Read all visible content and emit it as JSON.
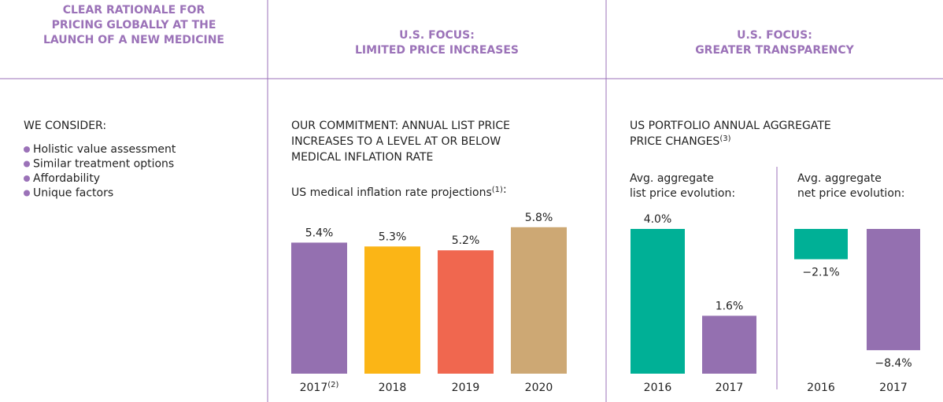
{
  "columns": [
    {
      "header": [
        "CLEAR RATIONALE FOR",
        "PRICING GLOBALLY AT THE",
        "LAUNCH OF A NEW MEDICINE"
      ],
      "heading": [
        "WE CONSIDER:"
      ],
      "bullets": [
        "Holistic value assessment",
        "Similar treatment options",
        "Affordability",
        "Unique factors"
      ]
    },
    {
      "header": [
        "U.S. FOCUS:",
        "LIMITED PRICE INCREASES"
      ],
      "heading": [
        "OUR COMMITMENT: ANNUAL LIST PRICE",
        "INCREASES TO A LEVEL AT OR BELOW",
        "MEDICAL INFLATION RATE"
      ]
    },
    {
      "header": [
        "U.S. FOCUS:",
        "GREATER TRANSPARENCY"
      ],
      "heading": [
        "US PORTFOLIO ANNUAL AGGREGATE",
        "PRICE CHANGES(3)"
      ]
    }
  ],
  "chart_data": [
    {
      "type": "bar",
      "title": [
        "US medical inflation rate projections(1):"
      ],
      "categories": [
        "2017(2)",
        "2018",
        "2019",
        "2020"
      ],
      "values": [
        5.4,
        5.3,
        5.2,
        5.8
      ],
      "value_labels": [
        "5.4%",
        "5.3%",
        "5.2%",
        "5.8%"
      ],
      "colors": [
        "#9470b0",
        "#fbb516",
        "#f0674f",
        "#cda874"
      ],
      "ylim": [
        2,
        6
      ]
    },
    {
      "type": "bar",
      "title": [
        "Avg. aggregate",
        "list price evolution:"
      ],
      "categories": [
        "2016",
        "2017"
      ],
      "values": [
        4.0,
        1.6
      ],
      "value_labels": [
        "4.0%",
        "1.6%"
      ],
      "colors": [
        "#00b096",
        "#9470b0"
      ],
      "ylim": [
        0,
        4
      ]
    },
    {
      "type": "bar",
      "title": [
        "Avg. aggregate",
        "net price evolution:"
      ],
      "categories": [
        "2016",
        "2017"
      ],
      "values": [
        -2.1,
        -8.4
      ],
      "value_labels": [
        "−2.1%",
        "−8.4%"
      ],
      "colors": [
        "#00b096",
        "#9470b0"
      ],
      "ylim": [
        -8.5,
        0
      ]
    }
  ]
}
